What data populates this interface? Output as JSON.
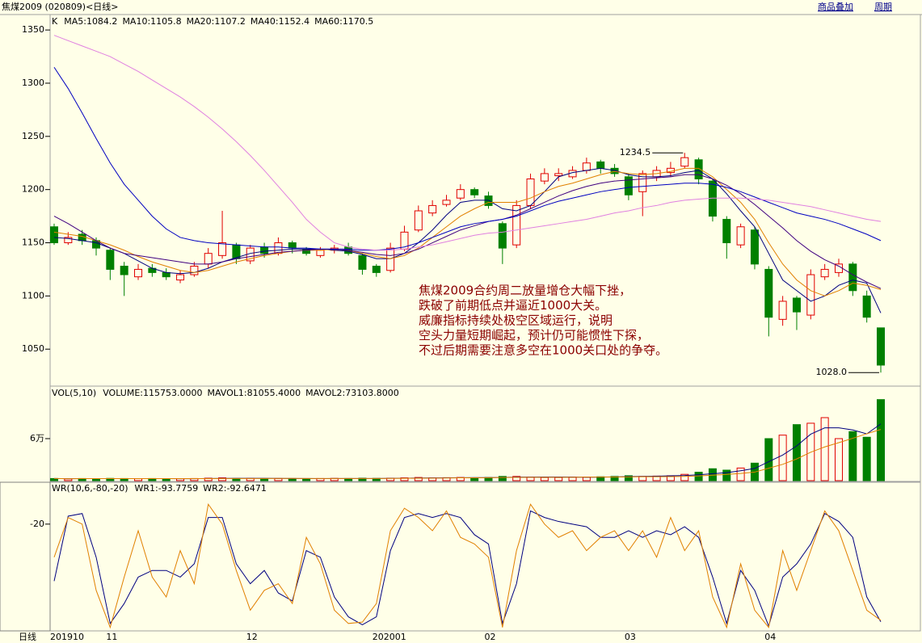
{
  "header": {
    "title": "焦煤2009 (020809)<日线>",
    "links": [
      "商品叠加",
      "周期"
    ]
  },
  "x_axis": {
    "label": "日线",
    "categories": [
      "201910",
      null,
      null,
      null,
      "11",
      null,
      null,
      null,
      null,
      null,
      null,
      null,
      null,
      null,
      "12",
      null,
      null,
      null,
      null,
      null,
      null,
      null,
      null,
      "202001",
      null,
      null,
      null,
      null,
      null,
      null,
      null,
      "02",
      null,
      null,
      null,
      null,
      null,
      null,
      null,
      null,
      null,
      "03",
      null,
      null,
      null,
      null,
      null,
      null,
      null,
      null,
      null,
      "04",
      null,
      null,
      null,
      null,
      null,
      null,
      null,
      null
    ]
  },
  "chart_data": [
    {
      "type": "candlestick",
      "title": "K",
      "ylim": [
        1016,
        1363
      ],
      "yticks": [
        1050,
        1100,
        1150,
        1200,
        1250,
        1300,
        1350
      ],
      "up_color": "#e00000",
      "down_color": "#008000",
      "open": [
        1165,
        1150,
        1158,
        1152,
        1143,
        1128,
        1118,
        1126,
        1122,
        1115,
        1120,
        1130,
        1138,
        1148,
        1133,
        1146,
        1140,
        1150,
        1144,
        1138,
        1143,
        1146,
        1138,
        1128,
        1124,
        1144,
        1162,
        1178,
        1186,
        1192,
        1200,
        1194,
        1168,
        1148,
        1185,
        1208,
        1213,
        1212,
        1218,
        1226,
        1220,
        1212,
        1198,
        1212,
        1216,
        1222,
        1228,
        1208,
        1172,
        1148,
        1162,
        1125,
        1078,
        1098,
        1082,
        1118,
        1122,
        1130,
        1100,
        1070
      ],
      "high": [
        1168,
        1160,
        1162,
        1155,
        1145,
        1132,
        1130,
        1130,
        1126,
        1124,
        1132,
        1145,
        1180,
        1150,
        1148,
        1150,
        1155,
        1152,
        1146,
        1146,
        1148,
        1150,
        1140,
        1130,
        1150,
        1166,
        1185,
        1190,
        1195,
        1205,
        1202,
        1198,
        1170,
        1190,
        1215,
        1220,
        1220,
        1222,
        1230,
        1228,
        1224,
        1215,
        1218,
        1222,
        1226,
        1234.5,
        1230,
        1210,
        1175,
        1168,
        1165,
        1128,
        1100,
        1100,
        1125,
        1130,
        1135,
        1132,
        1105,
        1070
      ],
      "low": [
        1148,
        1148,
        1148,
        1138,
        1115,
        1100,
        1115,
        1118,
        1115,
        1112,
        1118,
        1126,
        1135,
        1130,
        1130,
        1136,
        1138,
        1140,
        1138,
        1136,
        1140,
        1138,
        1120,
        1118,
        1122,
        1142,
        1160,
        1175,
        1184,
        1190,
        1192,
        1182,
        1130,
        1145,
        1182,
        1205,
        1208,
        1210,
        1215,
        1215,
        1212,
        1190,
        1175,
        1208,
        1212,
        1220,
        1205,
        1170,
        1135,
        1145,
        1125,
        1062,
        1072,
        1068,
        1078,
        1115,
        1118,
        1100,
        1075,
        1028
      ],
      "close": [
        1150,
        1155,
        1152,
        1145,
        1125,
        1120,
        1125,
        1122,
        1118,
        1120,
        1128,
        1140,
        1150,
        1135,
        1145,
        1140,
        1150,
        1145,
        1140,
        1143,
        1145,
        1140,
        1125,
        1122,
        1145,
        1160,
        1180,
        1185,
        1190,
        1200,
        1195,
        1185,
        1145,
        1185,
        1210,
        1215,
        1215,
        1218,
        1225,
        1220,
        1215,
        1195,
        1215,
        1218,
        1220,
        1230,
        1210,
        1175,
        1150,
        1165,
        1130,
        1080,
        1095,
        1085,
        1120,
        1125,
        1130,
        1105,
        1080,
        1035
      ],
      "series": [
        {
          "name": "MA5:1084.2",
          "color": "#000080",
          "values": [
            1155,
            1154,
            1152,
            1150,
            1145,
            1140,
            1133,
            1126,
            1122,
            1121,
            1122,
            1126,
            1132,
            1136,
            1140,
            1142,
            1143,
            1144,
            1144,
            1144,
            1143,
            1142,
            1139,
            1135,
            1135,
            1140,
            1150,
            1162,
            1176,
            1188,
            1190,
            1190,
            1182,
            1180,
            1185,
            1198,
            1212,
            1216,
            1218,
            1220,
            1218,
            1214,
            1212,
            1212,
            1213,
            1216,
            1218,
            1210,
            1196,
            1180,
            1165,
            1140,
            1115,
            1105,
            1095,
            1100,
            1110,
            1115,
            1112,
            1084
          ]
        },
        {
          "name": "MA10:1105.8",
          "color": "#e08000",
          "values": [
            1160,
            1158,
            1156,
            1152,
            1148,
            1143,
            1137,
            1132,
            1128,
            1124,
            1122,
            1124,
            1128,
            1132,
            1135,
            1138,
            1140,
            1142,
            1143,
            1143,
            1144,
            1143,
            1140,
            1137,
            1135,
            1138,
            1145,
            1155,
            1165,
            1175,
            1182,
            1188,
            1188,
            1188,
            1192,
            1198,
            1203,
            1206,
            1210,
            1214,
            1217,
            1215,
            1214,
            1215,
            1217,
            1220,
            1220,
            1212,
            1200,
            1188,
            1172,
            1150,
            1130,
            1115,
            1105,
            1100,
            1105,
            1112,
            1110,
            1106
          ]
        },
        {
          "name": "MA20:1107.2",
          "color": "#400080",
          "values": [
            1175,
            1168,
            1160,
            1152,
            1145,
            1140,
            1138,
            1136,
            1134,
            1132,
            1130,
            1130,
            1132,
            1135,
            1137,
            1139,
            1141,
            1142,
            1143,
            1144,
            1144,
            1143,
            1141,
            1139,
            1138,
            1140,
            1144,
            1150,
            1156,
            1162,
            1166,
            1170,
            1172,
            1176,
            1182,
            1188,
            1194,
            1199,
            1203,
            1206,
            1208,
            1209,
            1210,
            1211,
            1212,
            1214,
            1214,
            1210,
            1204,
            1196,
            1186,
            1175,
            1164,
            1152,
            1142,
            1134,
            1128,
            1120,
            1113,
            1107
          ]
        },
        {
          "name": "MA40:1152.4",
          "color": "#0000c0",
          "values": [
            1315,
            1295,
            1272,
            1248,
            1225,
            1205,
            1190,
            1175,
            1163,
            1155,
            1152,
            1150,
            1149,
            1148,
            1147,
            1146,
            1146,
            1145,
            1145,
            1144,
            1144,
            1144,
            1143,
            1143,
            1144,
            1146,
            1150,
            1155,
            1160,
            1165,
            1168,
            1170,
            1172,
            1175,
            1180,
            1185,
            1189,
            1192,
            1195,
            1198,
            1200,
            1202,
            1203,
            1204,
            1205,
            1206,
            1206,
            1205,
            1202,
            1198,
            1193,
            1188,
            1183,
            1178,
            1175,
            1172,
            1168,
            1163,
            1158,
            1152
          ]
        },
        {
          "name": "MA60:1170.5",
          "color": "#e080e0",
          "values": [
            1345,
            1340,
            1335,
            1330,
            1325,
            1318,
            1311,
            1303,
            1295,
            1287,
            1278,
            1268,
            1257,
            1245,
            1232,
            1218,
            1203,
            1188,
            1172,
            1160,
            1150,
            1146,
            1144,
            1143,
            1143,
            1144,
            1146,
            1148,
            1151,
            1154,
            1157,
            1159,
            1160,
            1162,
            1164,
            1166,
            1168,
            1170,
            1172,
            1175,
            1178,
            1180,
            1183,
            1185,
            1188,
            1190,
            1191,
            1192,
            1192,
            1192,
            1191,
            1190,
            1188,
            1186,
            1184,
            1181,
            1178,
            1175,
            1172,
            1170
          ]
        }
      ],
      "extremes": [
        {
          "value": 1234.5,
          "label": "1234.5"
        },
        {
          "value": 1028,
          "label": "1028.0"
        }
      ],
      "annotation": [
        "焦煤2009合约周二放量增仓大幅下挫，",
        "跌破了前期低点并逼近1000大关。",
        "威廉指标持续处极空区域运行，说明",
        "空头力量短期崛起，预计仍可能惯性下探，",
        "不过后期需要注意多空在1000关口处的争夺。"
      ]
    },
    {
      "type": "bar",
      "title": "VOL(5,10)",
      "ylim": [
        0,
        132700
      ],
      "yticks": [
        {
          "value": 60000,
          "label": "6万"
        }
      ],
      "series": [
        {
          "name": "VOLUME:115753.0000",
          "color": "#000000",
          "type": "bar",
          "values": [
            3000,
            2500,
            3000,
            2800,
            3200,
            3000,
            2800,
            3000,
            2600,
            2800,
            3000,
            3500,
            4000,
            3000,
            3200,
            2800,
            3000,
            3000,
            2800,
            3000,
            3200,
            3000,
            3500,
            3200,
            3500,
            4000,
            4500,
            4000,
            4200,
            4500,
            4000,
            4500,
            6000,
            6000,
            5000,
            4500,
            4500,
            5000,
            5000,
            5500,
            6000,
            7000,
            6000,
            6500,
            7000,
            9000,
            12000,
            17000,
            15000,
            18000,
            25000,
            60000,
            65000,
            80000,
            82000,
            90000,
            60000,
            70000,
            62000,
            115753
          ]
        },
        {
          "name": "MAVOL1:81055.4000",
          "color": "#000080",
          "values": [
            3000,
            2800,
            2900,
            2900,
            2900,
            2900,
            2900,
            2900,
            2900,
            2800,
            2800,
            3000,
            3200,
            3300,
            3300,
            3300,
            3200,
            3000,
            3000,
            2900,
            3000,
            3000,
            3100,
            3100,
            3300,
            3500,
            3700,
            3900,
            4000,
            4200,
            4300,
            4300,
            4600,
            5000,
            5100,
            5200,
            5200,
            5000,
            4800,
            5000,
            5300,
            5700,
            6000,
            6400,
            6900,
            7300,
            8400,
            9900,
            11400,
            14200,
            17400,
            27000,
            36600,
            49600,
            66400,
            75400,
            75400,
            72400,
            66800,
            81055.4
          ]
        },
        {
          "name": "MAVOL2:73103.8000",
          "color": "#e08000",
          "values": [
            3000,
            2800,
            2900,
            2900,
            2900,
            2900,
            2900,
            2900,
            2900,
            2900,
            2900,
            2900,
            3000,
            3000,
            3100,
            3100,
            3200,
            3200,
            3100,
            3100,
            3000,
            3000,
            3000,
            3100,
            3200,
            3300,
            3500,
            3600,
            3800,
            4000,
            4100,
            4200,
            4400,
            4600,
            4700,
            4800,
            4800,
            4800,
            5000,
            5100,
            5200,
            5400,
            5600,
            5600,
            5800,
            6000,
            6800,
            7800,
            8900,
            10300,
            12200,
            17700,
            23300,
            31000,
            40600,
            48200,
            54200,
            60500,
            67000,
            73103.8
          ]
        }
      ]
    },
    {
      "type": "line",
      "title": "WR(10,6,-80,-20)",
      "ylim": [
        -100,
        11
      ],
      "yticks": [
        -20
      ],
      "series": [
        {
          "name": "WR1:-93.7759",
          "color": "#000080",
          "values": [
            -63,
            -14,
            -12,
            -45,
            -95,
            -80,
            -60,
            -55,
            -55,
            -60,
            -50,
            -15,
            -15,
            -50,
            -65,
            -55,
            -72,
            -78,
            -40,
            -45,
            -75,
            -90,
            -96,
            -90,
            -40,
            -15,
            -12,
            -15,
            -12,
            -15,
            -28,
            -35,
            -95,
            -65,
            -10,
            -15,
            -18,
            -20,
            -22,
            -30,
            -30,
            -25,
            -30,
            -25,
            -28,
            -22,
            -30,
            -60,
            -95,
            -55,
            -70,
            -97,
            -60,
            -50,
            -35,
            -12,
            -18,
            -30,
            -75,
            -93.7759
          ]
        },
        {
          "name": "WR2:-92.6471",
          "color": "#e08000",
          "values": [
            -45,
            -15,
            -20,
            -70,
            -98,
            -60,
            -25,
            -60,
            -75,
            -40,
            -65,
            -5,
            -20,
            -55,
            -85,
            -70,
            -65,
            -80,
            -30,
            -50,
            -85,
            -95,
            -94,
            -80,
            -25,
            -8,
            -15,
            -25,
            -10,
            -30,
            -35,
            -45,
            -98,
            -40,
            -5,
            -20,
            -30,
            -25,
            -40,
            -30,
            -25,
            -40,
            -25,
            -45,
            -15,
            -40,
            -25,
            -75,
            -98,
            -50,
            -85,
            -98,
            -40,
            -70,
            -40,
            -10,
            -25,
            -55,
            -85,
            -92.6471
          ]
        }
      ]
    }
  ]
}
